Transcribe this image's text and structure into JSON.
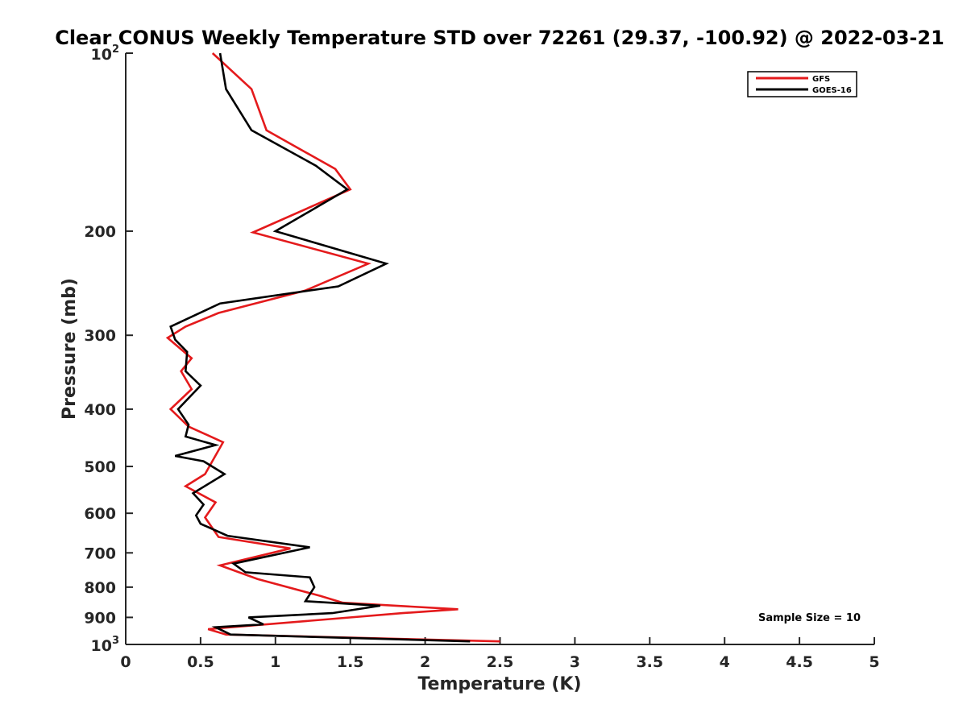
{
  "chart_data": {
    "type": "line",
    "title": "Clear CONUS Weekly Temperature STD over 72261 (29.37, -100.92) @ 2022-03-21",
    "xlabel": "Temperature (K)",
    "ylabel": "Pressure (mb)",
    "xlim": [
      0,
      5
    ],
    "ylim": [
      100,
      1000
    ],
    "y_scale": "log",
    "y_reversed": true,
    "grid": false,
    "legend_position": "top-right",
    "x_ticks": [
      "0",
      "0.5",
      "1",
      "1.5",
      "2",
      "2.5",
      "3",
      "3.5",
      "4",
      "4.5",
      "5"
    ],
    "y_ticks": [
      {
        "base": "10",
        "exp": "2",
        "value": 100
      },
      {
        "label": "200",
        "value": 200
      },
      {
        "label": "300",
        "value": 300
      },
      {
        "label": "400",
        "value": 400
      },
      {
        "label": "500",
        "value": 500
      },
      {
        "label": "600",
        "value": 600
      },
      {
        "label": "700",
        "value": 700
      },
      {
        "label": "800",
        "value": 800
      },
      {
        "label": "900",
        "value": 900
      },
      {
        "base": "10",
        "exp": "3",
        "value": 1000
      }
    ],
    "annotation": "Sample Size = 10",
    "series": [
      {
        "name": "GFS",
        "color": "#e41a1c",
        "x": [
          0.58,
          0.84,
          0.94,
          1.4,
          1.5,
          0.85,
          1.62,
          1.2,
          0.62,
          0.4,
          0.28,
          0.44,
          0.37,
          0.44,
          0.3,
          0.42,
          0.65,
          0.53,
          0.4,
          0.6,
          0.53,
          0.62,
          1.1,
          0.63,
          0.88,
          1.3,
          1.45,
          2.22,
          1.85,
          0.55,
          0.67,
          2.5
        ],
        "y": [
          100,
          115,
          135,
          157,
          170,
          201,
          227,
          252,
          275,
          290,
          303,
          328,
          345,
          370,
          400,
          428,
          455,
          515,
          540,
          575,
          610,
          658,
          688,
          735,
          775,
          828,
          850,
          872,
          885,
          942,
          962,
          988
        ]
      },
      {
        "name": "GOES-16",
        "color": "#000000",
        "x": [
          0.63,
          0.67,
          0.84,
          1.27,
          1.48,
          1.0,
          1.74,
          1.42,
          0.63,
          0.3,
          0.33,
          0.41,
          0.4,
          0.5,
          0.35,
          0.42,
          0.4,
          0.6,
          0.33,
          0.52,
          0.66,
          0.45,
          0.52,
          0.47,
          0.5,
          0.68,
          1.23,
          0.72,
          0.8,
          1.23,
          1.26,
          1.2,
          1.7,
          1.38,
          0.82,
          0.92,
          0.6,
          0.7,
          2.3
        ],
        "y": [
          100,
          115,
          135,
          155,
          170,
          200,
          227,
          248,
          265,
          290,
          305,
          320,
          345,
          365,
          400,
          425,
          445,
          460,
          480,
          490,
          515,
          555,
          580,
          605,
          625,
          655,
          685,
          730,
          755,
          770,
          800,
          845,
          860,
          885,
          900,
          925,
          935,
          962,
          988
        ]
      }
    ]
  }
}
